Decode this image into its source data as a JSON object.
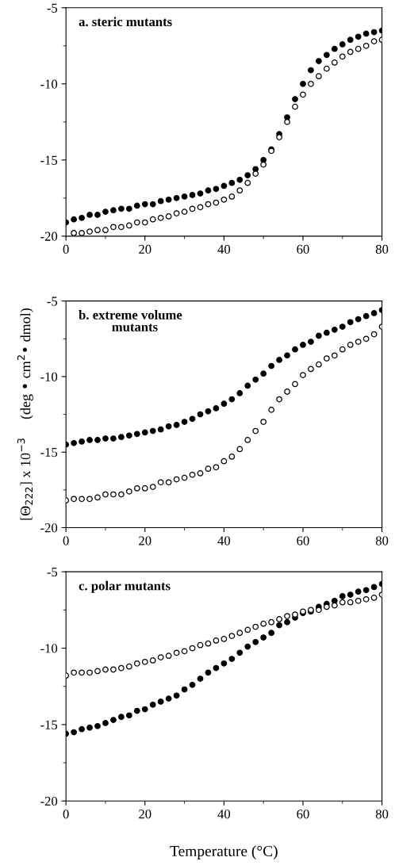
{
  "chart_data": [
    {
      "type": "scatter",
      "title": "a. steric mutants",
      "marker": "circle",
      "xlim": [
        0,
        80
      ],
      "xticks": [
        0,
        20,
        40,
        60,
        80
      ],
      "ylim": [
        -20,
        -5
      ],
      "yticks": [
        -20,
        -15,
        -10,
        -5
      ],
      "grid": false,
      "legend": false,
      "series": [
        {
          "color": "#000000",
          "x": [
            0,
            2,
            4,
            6,
            8,
            10,
            12,
            14,
            16,
            18,
            20,
            22,
            24,
            26,
            28,
            30,
            32,
            34,
            36,
            38,
            40,
            42,
            44,
            46,
            48,
            50,
            52,
            54,
            56,
            58,
            60,
            62,
            64,
            66,
            68,
            70,
            72,
            74,
            76,
            78,
            80
          ],
          "values": [
            -19.1,
            -18.9,
            -18.8,
            -18.6,
            -18.6,
            -18.4,
            -18.3,
            -18.2,
            -18.2,
            -18.0,
            -17.9,
            -17.9,
            -17.7,
            -17.6,
            -17.5,
            -17.4,
            -17.3,
            -17.2,
            -17.0,
            -16.9,
            -16.7,
            -16.5,
            -16.3,
            -16.0,
            -15.6,
            -15.0,
            -14.3,
            -13.3,
            -12.2,
            -11.0,
            -10.0,
            -9.1,
            -8.5,
            -8.1,
            -7.7,
            -7.4,
            -7.1,
            -6.9,
            -6.7,
            -6.6,
            -6.5
          ]
        },
        {
          "color": "#ffffff",
          "x": [
            2,
            4,
            6,
            8,
            10,
            12,
            14,
            16,
            18,
            20,
            22,
            24,
            26,
            28,
            30,
            32,
            34,
            36,
            38,
            40,
            42,
            44,
            46,
            48,
            50,
            52,
            54,
            56,
            58,
            60,
            62,
            64,
            66,
            68,
            70,
            72,
            74,
            76,
            78,
            80
          ],
          "values": [
            -19.8,
            -19.8,
            -19.7,
            -19.6,
            -19.6,
            -19.4,
            -19.4,
            -19.3,
            -19.1,
            -19.1,
            -18.9,
            -18.8,
            -18.7,
            -18.5,
            -18.4,
            -18.2,
            -18.1,
            -17.9,
            -17.8,
            -17.6,
            -17.4,
            -17.0,
            -16.5,
            -15.9,
            -15.3,
            -14.4,
            -13.5,
            -12.5,
            -11.5,
            -10.7,
            -10.0,
            -9.5,
            -9.0,
            -8.6,
            -8.2,
            -7.9,
            -7.7,
            -7.5,
            -7.2,
            -7.1
          ]
        }
      ]
    },
    {
      "type": "scatter",
      "title": "b. extreme volume\n          mutants",
      "ylabel": "[Θ$_{222}$] x 10$^{−3}$     (deg • cm$^{2}$• dmol)",
      "marker": "circle",
      "xlim": [
        0,
        80
      ],
      "xticks": [
        0,
        20,
        40,
        60,
        80
      ],
      "ylim": [
        -20,
        -5
      ],
      "yticks": [
        -20,
        -15,
        -10,
        -5
      ],
      "grid": false,
      "legend": false,
      "series": [
        {
          "color": "#000000",
          "x": [
            0,
            2,
            4,
            6,
            8,
            10,
            12,
            14,
            16,
            18,
            20,
            22,
            24,
            26,
            28,
            30,
            32,
            34,
            36,
            38,
            40,
            42,
            44,
            46,
            48,
            50,
            52,
            54,
            56,
            58,
            60,
            62,
            64,
            66,
            68,
            70,
            72,
            74,
            76,
            78,
            80
          ],
          "values": [
            -14.5,
            -14.4,
            -14.3,
            -14.2,
            -14.2,
            -14.1,
            -14.1,
            -14.0,
            -13.9,
            -13.8,
            -13.7,
            -13.6,
            -13.5,
            -13.3,
            -13.2,
            -13.0,
            -12.8,
            -12.5,
            -12.3,
            -12.1,
            -11.8,
            -11.5,
            -11.1,
            -10.6,
            -10.2,
            -9.8,
            -9.3,
            -8.9,
            -8.6,
            -8.2,
            -7.9,
            -7.7,
            -7.3,
            -7.1,
            -6.9,
            -6.7,
            -6.4,
            -6.2,
            -6.0,
            -5.8,
            -5.6
          ]
        },
        {
          "color": "#ffffff",
          "x": [
            0,
            2,
            4,
            6,
            8,
            10,
            12,
            14,
            16,
            18,
            20,
            22,
            24,
            26,
            28,
            30,
            32,
            34,
            36,
            38,
            40,
            42,
            44,
            46,
            48,
            50,
            52,
            54,
            56,
            58,
            60,
            62,
            64,
            66,
            68,
            70,
            72,
            74,
            76,
            78,
            80
          ],
          "values": [
            -18.2,
            -18.1,
            -18.1,
            -18.1,
            -18.0,
            -17.8,
            -17.8,
            -17.8,
            -17.6,
            -17.4,
            -17.4,
            -17.3,
            -17.0,
            -17.0,
            -16.8,
            -16.7,
            -16.5,
            -16.4,
            -16.1,
            -16.0,
            -15.6,
            -15.3,
            -14.8,
            -14.2,
            -13.6,
            -13.0,
            -12.2,
            -11.5,
            -11.0,
            -10.5,
            -9.9,
            -9.5,
            -9.2,
            -8.8,
            -8.6,
            -8.2,
            -7.9,
            -7.7,
            -7.5,
            -7.2,
            -6.7
          ]
        }
      ]
    },
    {
      "type": "scatter",
      "title": "c. polar mutants",
      "xlabel": "Temperature (°C)",
      "marker": "circle",
      "xlim": [
        0,
        80
      ],
      "xticks": [
        0,
        20,
        40,
        60,
        80
      ],
      "ylim": [
        -20,
        -5
      ],
      "yticks": [
        -20,
        -15,
        -10,
        -5
      ],
      "grid": false,
      "legend": false,
      "series": [
        {
          "color": "#000000",
          "x": [
            0,
            2,
            4,
            6,
            8,
            10,
            12,
            14,
            16,
            18,
            20,
            22,
            24,
            26,
            28,
            30,
            32,
            34,
            36,
            38,
            40,
            42,
            44,
            46,
            48,
            50,
            52,
            54,
            56,
            58,
            60,
            62,
            64,
            66,
            68,
            70,
            72,
            74,
            76,
            78,
            80
          ],
          "values": [
            -15.6,
            -15.5,
            -15.3,
            -15.2,
            -15.1,
            -14.9,
            -14.7,
            -14.5,
            -14.4,
            -14.1,
            -14.0,
            -13.7,
            -13.5,
            -13.3,
            -13.1,
            -12.7,
            -12.4,
            -12.0,
            -11.6,
            -11.3,
            -11.0,
            -10.7,
            -10.3,
            -9.9,
            -9.6,
            -9.3,
            -9.0,
            -8.5,
            -8.3,
            -8.0,
            -7.7,
            -7.6,
            -7.3,
            -7.1,
            -6.9,
            -6.6,
            -6.5,
            -6.3,
            -6.2,
            -6.0,
            -5.8
          ]
        },
        {
          "color": "#ffffff",
          "x": [
            0,
            2,
            4,
            6,
            8,
            10,
            12,
            14,
            16,
            18,
            20,
            22,
            24,
            26,
            28,
            30,
            32,
            34,
            36,
            38,
            40,
            42,
            44,
            46,
            48,
            50,
            52,
            54,
            56,
            58,
            60,
            62,
            64,
            66,
            68,
            70,
            72,
            74,
            76,
            78,
            80
          ],
          "values": [
            -11.8,
            -11.6,
            -11.6,
            -11.6,
            -11.5,
            -11.4,
            -11.4,
            -11.3,
            -11.2,
            -11.0,
            -10.9,
            -10.8,
            -10.6,
            -10.5,
            -10.3,
            -10.2,
            -10.0,
            -9.8,
            -9.7,
            -9.5,
            -9.4,
            -9.2,
            -9.0,
            -8.8,
            -8.6,
            -8.4,
            -8.3,
            -8.1,
            -7.9,
            -7.8,
            -7.6,
            -7.5,
            -7.5,
            -7.3,
            -7.2,
            -7.0,
            -7.0,
            -6.9,
            -6.8,
            -6.7,
            -6.5
          ]
        }
      ]
    }
  ]
}
